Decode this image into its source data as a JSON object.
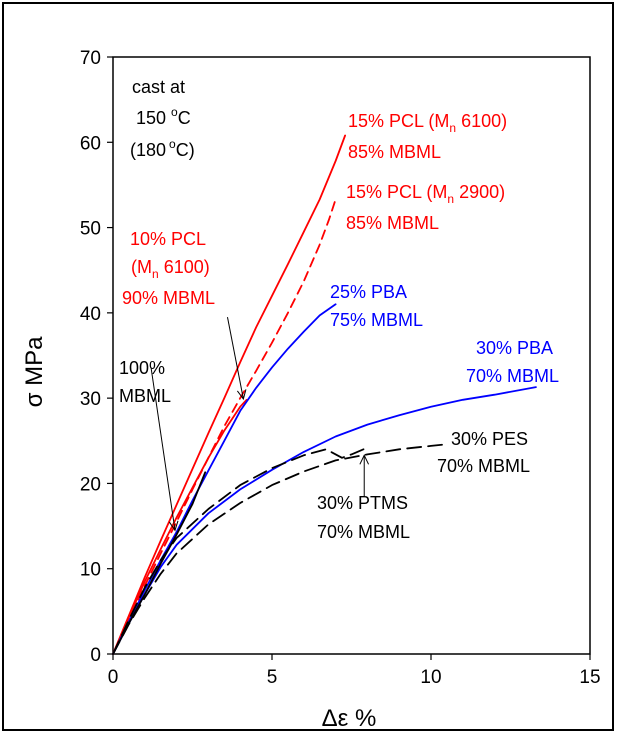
{
  "chart_data": {
    "type": "line",
    "xlabel": "Δε %",
    "ylabel": "σ MPa",
    "xlim": [
      0,
      15
    ],
    "ylim": [
      0,
      70
    ],
    "xticks": [
      0,
      5,
      10,
      15
    ],
    "yticks": [
      0,
      10,
      20,
      30,
      40,
      50,
      60,
      70
    ],
    "grid": false,
    "colors": {
      "red": "#ff0000",
      "blue": "#0000ff",
      "black": "#000000"
    },
    "header_annotation": {
      "line1": "cast at",
      "line2_value": "150",
      "line2_unit": "C",
      "line3_open": "(180",
      "line3_unit": "C)",
      "degree_mark": "o"
    },
    "series": [
      {
        "color": "#ff0000",
        "dash": "solid",
        "points": [
          [
            0,
            0
          ],
          [
            0.5,
            4.5
          ],
          [
            1.0,
            9.0
          ],
          [
            1.5,
            13.3
          ],
          [
            2.0,
            17.5
          ],
          [
            2.5,
            21.7
          ],
          [
            3.0,
            25.9
          ],
          [
            3.5,
            30.0
          ],
          [
            4.0,
            34.2
          ],
          [
            4.5,
            38.3
          ],
          [
            5.0,
            42.0
          ],
          [
            5.5,
            45.7
          ],
          [
            6.0,
            49.5
          ],
          [
            6.5,
            53.3
          ],
          [
            7.0,
            57.8
          ],
          [
            7.3,
            60.8
          ]
        ]
      },
      {
        "color": "#ff0000",
        "dash": "dashed",
        "points": [
          [
            0,
            0
          ],
          [
            0.5,
            4.0
          ],
          [
            1.0,
            8.0
          ],
          [
            1.5,
            11.8
          ],
          [
            2.0,
            15.5
          ],
          [
            2.5,
            19.3
          ],
          [
            3.0,
            23.0
          ],
          [
            3.5,
            26.7
          ],
          [
            4.0,
            30.0
          ],
          [
            4.5,
            33.2
          ],
          [
            5.0,
            36.5
          ],
          [
            5.5,
            40.0
          ],
          [
            6.0,
            43.7
          ],
          [
            6.5,
            48.0
          ],
          [
            6.8,
            51.0
          ],
          [
            7.0,
            53.3
          ]
        ]
      },
      {
        "color": "#ff0000",
        "dash": "solid",
        "points": [
          [
            0,
            0
          ],
          [
            0.5,
            4.3
          ],
          [
            1.0,
            8.5
          ],
          [
            1.5,
            12.3
          ],
          [
            2.0,
            16.0
          ],
          [
            2.5,
            19.5
          ],
          [
            3.0,
            23.0
          ],
          [
            3.5,
            26.2
          ],
          [
            4.0,
            29.0
          ],
          [
            4.2,
            29.8
          ]
        ]
      },
      {
        "color": "#0000ff",
        "dash": "solid",
        "points": [
          [
            0,
            0
          ],
          [
            0.5,
            3.8
          ],
          [
            1.0,
            7.5
          ],
          [
            1.5,
            11.0
          ],
          [
            2.0,
            14.3
          ],
          [
            2.5,
            18.0
          ],
          [
            3.0,
            21.5
          ],
          [
            3.5,
            25.0
          ],
          [
            4.0,
            28.5
          ],
          [
            4.5,
            31.2
          ],
          [
            5.0,
            33.6
          ],
          [
            5.5,
            35.8
          ],
          [
            6.0,
            37.8
          ],
          [
            6.5,
            39.7
          ],
          [
            7.0,
            41.0
          ]
        ]
      },
      {
        "color": "#0000ff",
        "dash": "solid",
        "points": [
          [
            0,
            0
          ],
          [
            0.5,
            3.6
          ],
          [
            1.0,
            7.0
          ],
          [
            1.5,
            10.2
          ],
          [
            2.0,
            12.8
          ],
          [
            3.0,
            16.5
          ],
          [
            4.0,
            19.3
          ],
          [
            5.0,
            21.6
          ],
          [
            6.0,
            23.7
          ],
          [
            7.0,
            25.5
          ],
          [
            8.0,
            26.9
          ],
          [
            9.0,
            28.0
          ],
          [
            10.0,
            29.0
          ],
          [
            11.0,
            29.8
          ],
          [
            12.0,
            30.4
          ],
          [
            13.3,
            31.3
          ]
        ]
      },
      {
        "color": "#000000",
        "dash": "solid",
        "points": [
          [
            0,
            0
          ],
          [
            0.5,
            3.6
          ],
          [
            1.0,
            7.0
          ],
          [
            1.5,
            10.6
          ],
          [
            2.0,
            14.0
          ],
          [
            2.5,
            17.6
          ],
          [
            2.9,
            21.3
          ]
        ]
      },
      {
        "color": "#000000",
        "dash": "longdash",
        "points": [
          [
            0,
            0
          ],
          [
            0.5,
            3.5
          ],
          [
            1.0,
            6.6
          ],
          [
            1.5,
            9.4
          ],
          [
            2.0,
            11.8
          ],
          [
            3.0,
            15.2
          ],
          [
            4.0,
            17.7
          ],
          [
            5.0,
            19.8
          ],
          [
            6.0,
            21.4
          ],
          [
            7.0,
            22.7
          ],
          [
            8.0,
            23.4
          ],
          [
            9.0,
            24.0
          ],
          [
            10.0,
            24.4
          ],
          [
            10.5,
            24.6
          ]
        ]
      },
      {
        "color": "#000000",
        "dash": "longdash",
        "points": [
          [
            0,
            0
          ],
          [
            0.5,
            4.0
          ],
          [
            1.0,
            7.8
          ],
          [
            1.5,
            11.0
          ],
          [
            2.0,
            13.6
          ],
          [
            3.0,
            17.0
          ],
          [
            4.0,
            19.8
          ],
          [
            5.0,
            21.8
          ],
          [
            6.0,
            23.3
          ],
          [
            6.7,
            24.0
          ],
          [
            7.2,
            23.0
          ],
          [
            7.5,
            23.4
          ],
          [
            8.0,
            24.2
          ]
        ]
      }
    ],
    "annotations": [
      {
        "color": "#ff0000",
        "line1": "15% PCL (M",
        "sub": "n",
        "line1_tail": " 6100)",
        "line2": "85% MBML"
      },
      {
        "color": "#ff0000",
        "line1": "15% PCL (M",
        "sub": "n",
        "line1_tail": " 2900)",
        "line2": "85% MBML"
      },
      {
        "color": "#ff0000",
        "line0": "10% PCL",
        "line1": "(M",
        "sub": "n",
        "line1_tail": " 6100)",
        "line2": "90% MBML"
      },
      {
        "color": "#0000ff",
        "line1": "25% PBA",
        "line2": "75% MBML"
      },
      {
        "color": "#0000ff",
        "line1": "30% PBA",
        "line2": "70% MBML"
      },
      {
        "color": "#000000",
        "line1": "100%",
        "line2": "MBML"
      },
      {
        "color": "#000000",
        "line1": "30% PES",
        "line2": "70% MBML"
      },
      {
        "color": "#000000",
        "line1": "30% PTMS",
        "line2": "70% MBML"
      }
    ],
    "arrows": [
      {
        "from": [
          3.6,
          39.5
        ],
        "to": [
          4.1,
          29.9
        ]
      },
      {
        "from": [
          1.2,
          33.5
        ],
        "to": [
          1.95,
          14.5
        ]
      },
      {
        "from": [
          7.9,
          18.5
        ],
        "to": [
          7.9,
          23.3
        ]
      }
    ]
  }
}
